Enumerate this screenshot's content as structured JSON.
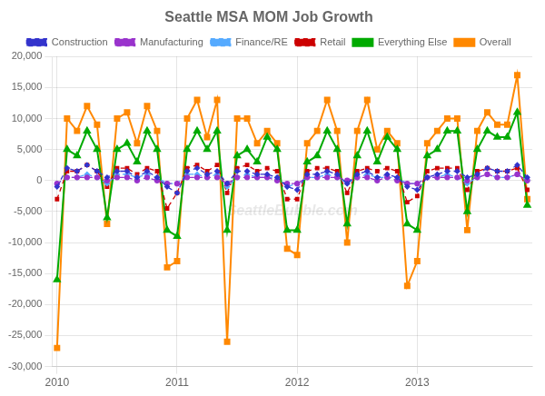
{
  "chart_data": {
    "type": "line",
    "title": "Seattle MSA MOM Job Growth",
    "categories": [
      "2010",
      null,
      null,
      null,
      null,
      null,
      null,
      null,
      null,
      null,
      null,
      null,
      "2011",
      null,
      null,
      null,
      null,
      null,
      null,
      null,
      null,
      null,
      null,
      null,
      "2012",
      null,
      null,
      null,
      null,
      null,
      null,
      null,
      null,
      null,
      null,
      null,
      "2013",
      null,
      null,
      null,
      null,
      null,
      null,
      null,
      null,
      null,
      null,
      null
    ],
    "series": [
      {
        "name": "Construction",
        "color": "#3333cc",
        "marker": "diamond",
        "line_style": "dashed",
        "values": [
          -1000,
          2000,
          1500,
          2500,
          1500,
          500,
          1500,
          1500,
          500,
          1500,
          500,
          -1000,
          -2000,
          1500,
          2000,
          1000,
          1500,
          -500,
          1500,
          1500,
          1000,
          1000,
          500,
          -1000,
          -1500,
          1000,
          1000,
          1500,
          1000,
          -500,
          1000,
          1500,
          500,
          1000,
          500,
          -1000,
          -1500,
          500,
          1000,
          1500,
          1500,
          500,
          1000,
          2000,
          1500,
          1500,
          2500,
          500
        ]
      },
      {
        "name": "Manufacturing",
        "color": "#9933cc",
        "marker": "circle",
        "line_style": "dashed",
        "values": [
          -500,
          500,
          500,
          500,
          500,
          0,
          500,
          500,
          0,
          500,
          0,
          -500,
          -500,
          500,
          500,
          500,
          500,
          -500,
          500,
          500,
          500,
          500,
          0,
          -500,
          -500,
          500,
          500,
          500,
          500,
          0,
          500,
          500,
          0,
          500,
          0,
          -500,
          -500,
          500,
          500,
          500,
          500,
          0,
          500,
          1000,
          500,
          500,
          1000,
          0
        ]
      },
      {
        "name": "Finance/RE",
        "color": "#55aaff",
        "marker": "diamond",
        "line_style": "dashed",
        "values": [
          -500,
          500,
          500,
          1000,
          500,
          -500,
          1000,
          1000,
          500,
          1000,
          500,
          -500,
          -500,
          1000,
          1000,
          500,
          1000,
          -1000,
          500,
          1000,
          500,
          500,
          500,
          -1000,
          -500,
          500,
          500,
          1000,
          500,
          -500,
          500,
          1000,
          500,
          500,
          500,
          -500,
          -500,
          500,
          500,
          1000,
          500,
          -500,
          500,
          1000,
          500,
          500,
          1000,
          0
        ]
      },
      {
        "name": "Retail",
        "color": "#cc0000",
        "marker": "square",
        "line_style": "dashed",
        "values": [
          -3000,
          1500,
          1500,
          2500,
          1500,
          -1000,
          2000,
          2000,
          1000,
          2000,
          1500,
          -4500,
          -2000,
          2000,
          2500,
          1500,
          2500,
          -2000,
          2000,
          2500,
          1500,
          2000,
          1500,
          -3000,
          -3000,
          1500,
          2000,
          2000,
          1500,
          -2000,
          1500,
          2000,
          1500,
          2000,
          1500,
          -3500,
          -2500,
          1500,
          2000,
          2000,
          2000,
          -1500,
          1500,
          2000,
          1500,
          1500,
          2000,
          -1500
        ]
      },
      {
        "name": "Everything Else",
        "color": "#00aa00",
        "marker": "triangle",
        "line_style": "solid",
        "values": [
          -16000,
          5000,
          4000,
          8000,
          5000,
          -6000,
          5000,
          6000,
          3000,
          8000,
          5000,
          -8000,
          -9000,
          5000,
          8000,
          5000,
          8000,
          -8000,
          4000,
          5000,
          3000,
          7000,
          5000,
          -8000,
          -8000,
          3000,
          4000,
          8000,
          5000,
          -7000,
          4000,
          8000,
          3000,
          7000,
          5000,
          -7000,
          -8000,
          4000,
          5000,
          8000,
          8000,
          -5000,
          5000,
          8000,
          7000,
          7000,
          11000,
          -4000
        ]
      },
      {
        "name": "Overall",
        "color": "#ff8800",
        "marker": "square",
        "line_style": "solid",
        "values": [
          -27000,
          10000,
          8000,
          12000,
          9000,
          -7000,
          10000,
          11000,
          6000,
          12000,
          8000,
          -14000,
          -13000,
          10000,
          13000,
          7000,
          13000,
          -26000,
          10000,
          10000,
          6000,
          8000,
          6000,
          -11000,
          -12000,
          6000,
          8000,
          13000,
          8000,
          -10000,
          8000,
          13000,
          5000,
          8000,
          6000,
          -17000,
          -13000,
          6000,
          8000,
          10000,
          10000,
          -8000,
          8000,
          11000,
          9000,
          9000,
          17000,
          -3000
        ]
      }
    ],
    "ylim": [
      -30000,
      20000
    ],
    "yticks": [
      {
        "value": -30000,
        "label": "-30,000"
      },
      {
        "value": -25000,
        "label": "-25,000"
      },
      {
        "value": -20000,
        "label": "-20,000"
      },
      {
        "value": -15000,
        "label": "-15,000"
      },
      {
        "value": -10000,
        "label": "-10,000"
      },
      {
        "value": -5000,
        "label": "-5,000"
      },
      0,
      {
        "value": 5000,
        "label": "5,000"
      },
      {
        "value": 10000,
        "label": "10,000"
      },
      {
        "value": 15000,
        "label": "15,000"
      },
      {
        "value": 20000,
        "label": "20,000"
      }
    ],
    "grid": true,
    "legend": "top",
    "annotations": [
      "SeattleBubble.com"
    ]
  }
}
